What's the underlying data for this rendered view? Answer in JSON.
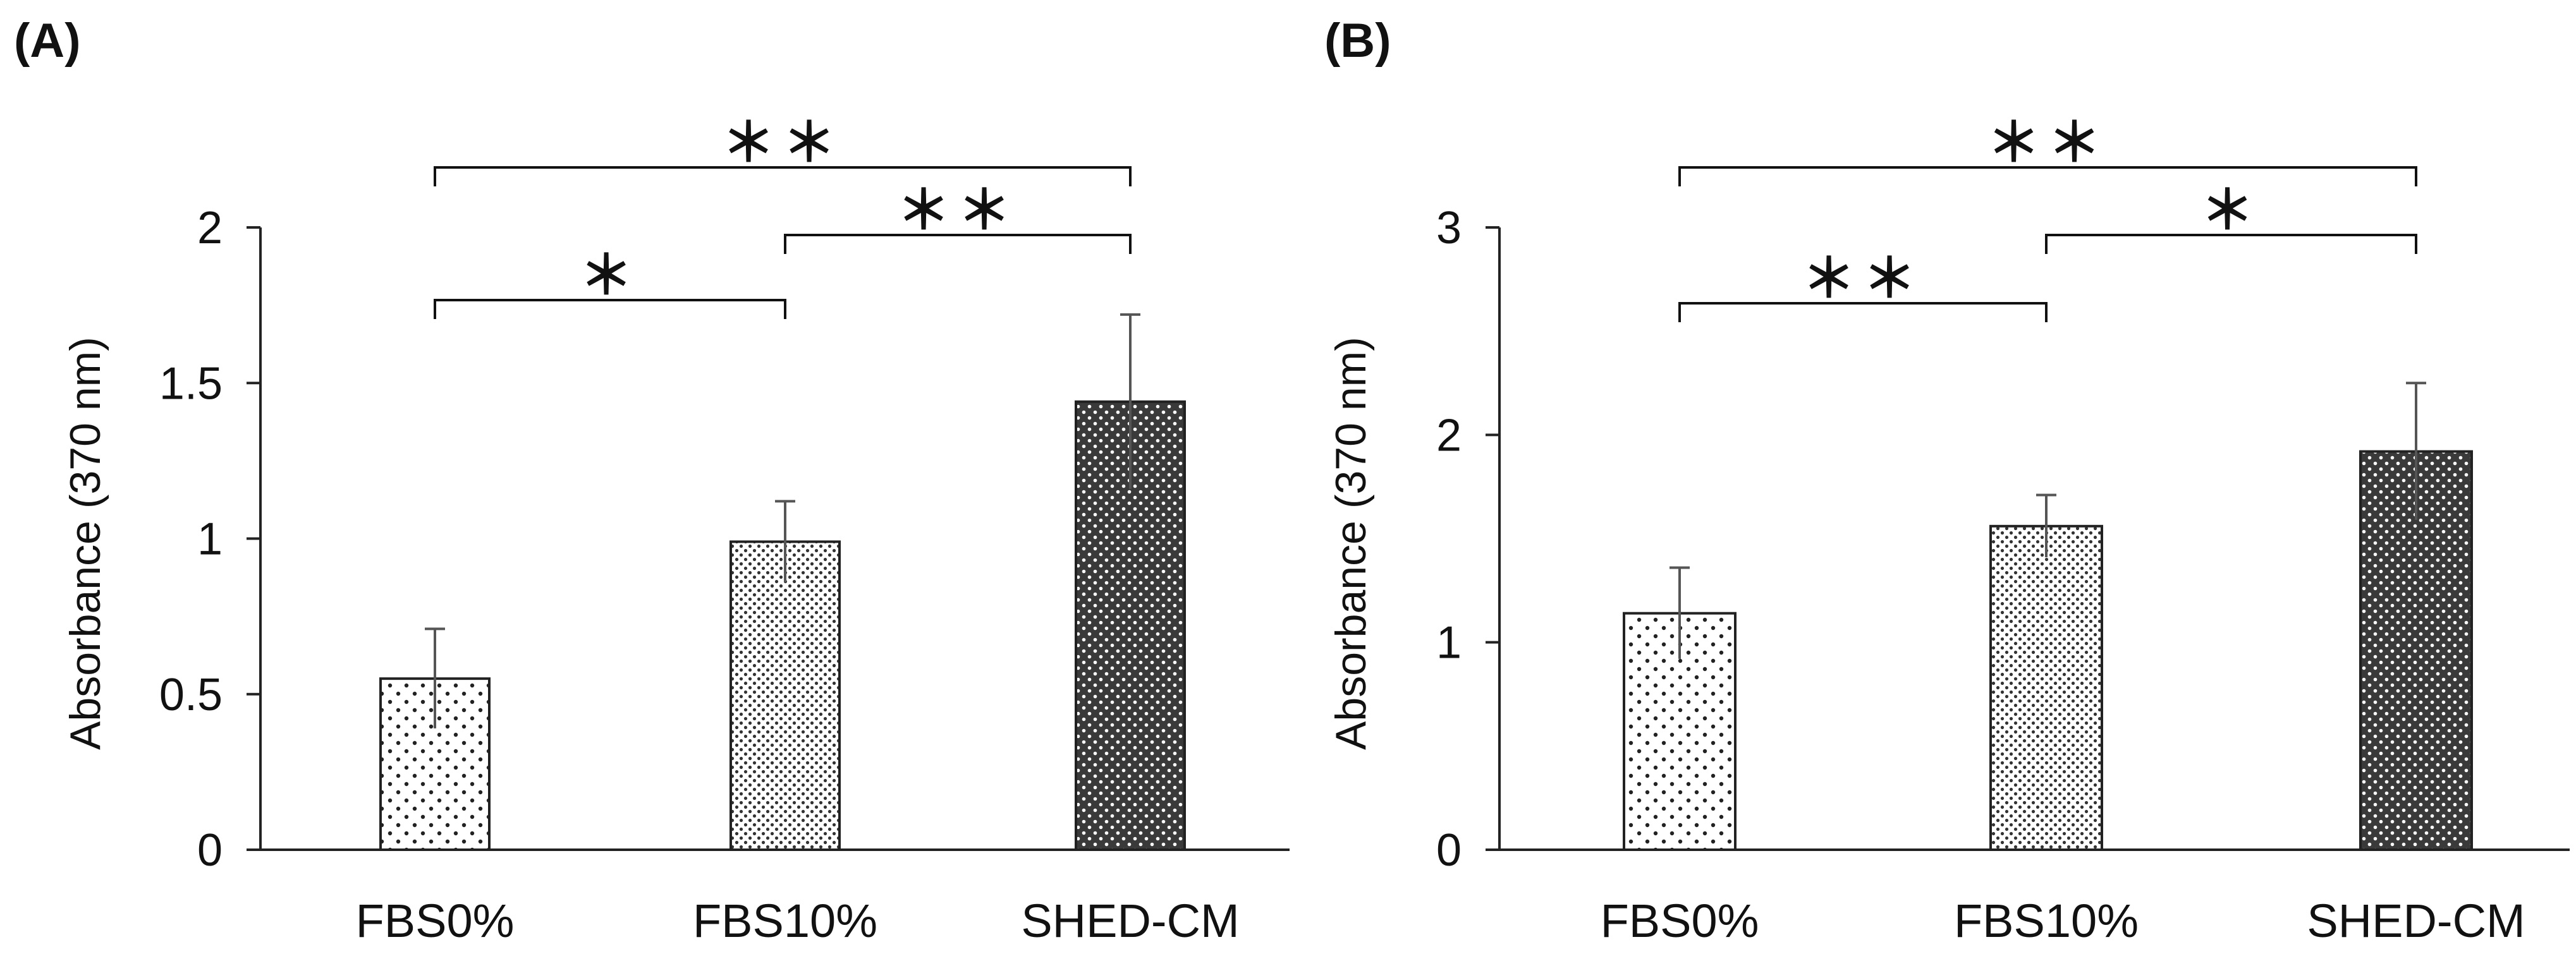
{
  "chart_data": [
    {
      "type": "bar",
      "panel_label": "(A)",
      "categories": [
        "FBS0%",
        "FBS10%",
        "SHED-CM"
      ],
      "values": [
        0.55,
        0.99,
        1.44
      ],
      "errors": [
        0.16,
        0.13,
        0.28
      ],
      "ylabel": "Absorbance (370 nm)",
      "xlabel": "",
      "ylim": [
        0,
        2
      ],
      "yticks": [
        0,
        0.5,
        1,
        1.5,
        2
      ],
      "ytick_labels": [
        "0",
        "0.5",
        "1",
        "1.5",
        "2"
      ],
      "bar_patterns": [
        "sparse-dots",
        "dense-dots",
        "dark-dots"
      ],
      "significance": [
        {
          "from": 0,
          "to": 1,
          "label": "＊"
        },
        {
          "from": 1,
          "to": 2,
          "label": "＊＊"
        },
        {
          "from": 0,
          "to": 2,
          "label": "＊＊"
        }
      ]
    },
    {
      "type": "bar",
      "panel_label": "(B)",
      "categories": [
        "FBS0%",
        "FBS10%",
        "SHED-CM"
      ],
      "values": [
        1.14,
        1.56,
        1.92
      ],
      "errors": [
        0.22,
        0.15,
        0.33
      ],
      "ylabel": "Absorbance (370 nm)",
      "xlabel": "",
      "ylim": [
        0,
        3
      ],
      "yticks": [
        0,
        1,
        2,
        3
      ],
      "ytick_labels": [
        "0",
        "1",
        "2",
        "3"
      ],
      "bar_patterns": [
        "sparse-dots",
        "dense-dots",
        "dark-dots"
      ],
      "significance": [
        {
          "from": 0,
          "to": 1,
          "label": "＊＊"
        },
        {
          "from": 1,
          "to": 2,
          "label": "＊"
        },
        {
          "from": 0,
          "to": 2,
          "label": "＊＊"
        }
      ]
    }
  ],
  "colors": {
    "bar_dark": "#3a3a3a",
    "bar_light": "#ffffff",
    "dot_dark": "#222222",
    "dot_light": "#ffffff",
    "axis": "#222222",
    "error_bar": "#555555"
  }
}
